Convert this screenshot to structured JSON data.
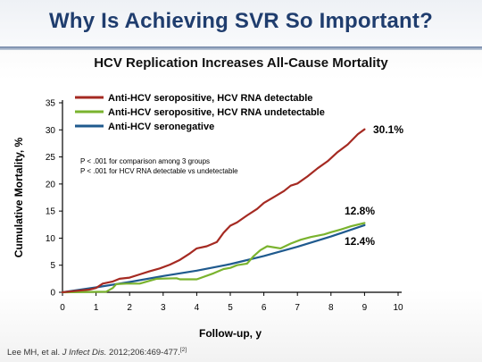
{
  "slide": {
    "title": "Why Is Achieving SVR So Important?",
    "subtitle": "HCV Replication Increases All-Cause Mortality",
    "citation_authors": "Lee MH, et al. ",
    "citation_journal": "J Infect Dis.",
    "citation_rest": " 2012;206:469-477.",
    "citation_ref": "[2]"
  },
  "chart_data": {
    "type": "line",
    "title": "",
    "xlabel": "Follow-up, y",
    "ylabel": "Cumulative Mortality, %",
    "xlim": [
      0,
      10
    ],
    "ylim": [
      0,
      35
    ],
    "xticks": [
      "0",
      "1",
      "2",
      "3",
      "4",
      "5",
      "6",
      "7",
      "8",
      "9",
      "10"
    ],
    "yticks": [
      "0",
      "5",
      "10",
      "15",
      "20",
      "25",
      "30",
      "35"
    ],
    "legend_position": "top-left",
    "annotations": [
      "P < .001 for comparison among 3 groups",
      "P < .001 for HCV RNA detectable vs undetectable"
    ],
    "series": [
      {
        "name": "Anti-HCV seropositive, HCV RNA detectable",
        "color": "#a52a22",
        "end_label": "30.1%",
        "x": [
          0,
          0.3,
          0.8,
          1.0,
          1.2,
          1.5,
          1.7,
          2.0,
          2.3,
          2.6,
          2.9,
          3.2,
          3.5,
          3.8,
          4.0,
          4.3,
          4.6,
          4.8,
          5.0,
          5.2,
          5.5,
          5.8,
          6.0,
          6.3,
          6.6,
          6.8,
          7.0,
          7.3,
          7.6,
          7.9,
          8.2,
          8.5,
          8.8,
          9.0
        ],
        "y": [
          0,
          0.2,
          0.5,
          0.8,
          1.6,
          2.0,
          2.5,
          2.7,
          3.3,
          3.9,
          4.4,
          5.1,
          6.0,
          7.2,
          8.1,
          8.5,
          9.3,
          11.0,
          12.3,
          12.9,
          14.2,
          15.4,
          16.5,
          17.6,
          18.7,
          19.7,
          20.1,
          21.4,
          22.9,
          24.2,
          25.9,
          27.3,
          29.2,
          30.1
        ]
      },
      {
        "name": "Anti-HCV seropositive, HCV RNA undetectable",
        "color": "#7ab32e",
        "end_label": "12.8%",
        "x": [
          0,
          1.3,
          1.5,
          1.6,
          1.9,
          2.3,
          2.8,
          3.4,
          3.5,
          4.0,
          4.5,
          4.8,
          5.0,
          5.2,
          5.5,
          5.7,
          5.9,
          6.1,
          6.5,
          6.8,
          7.1,
          7.4,
          7.8,
          8.0,
          8.3,
          8.6,
          9.0
        ],
        "y": [
          0,
          0.1,
          0.8,
          1.5,
          1.6,
          1.6,
          2.5,
          2.6,
          2.4,
          2.4,
          3.5,
          4.3,
          4.5,
          5.0,
          5.3,
          6.7,
          7.8,
          8.5,
          8.1,
          9.0,
          9.7,
          10.2,
          10.7,
          11.1,
          11.6,
          12.2,
          12.8
        ]
      },
      {
        "name": "Anti-HCV seronegative",
        "color": "#1f5a8e",
        "end_label": "12.4%",
        "x": [
          0,
          1,
          2,
          3,
          4,
          5,
          6,
          7,
          8,
          9
        ],
        "y": [
          0,
          0.9,
          1.9,
          3.0,
          4.0,
          5.2,
          6.7,
          8.4,
          10.3,
          12.4
        ]
      }
    ]
  }
}
